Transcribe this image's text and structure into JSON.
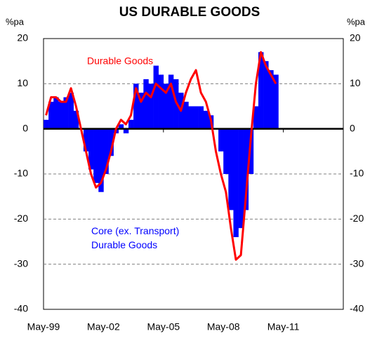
{
  "chart_data": {
    "type": "bar_line",
    "title": "US DURABLE  GOODS",
    "y_unit_label": "%pa",
    "y2_unit_label": "%pa",
    "x": [
      0,
      3,
      6,
      9,
      12,
      15,
      18,
      21,
      24,
      27,
      30,
      33,
      36,
      39,
      42,
      45,
      48,
      51,
      54,
      57,
      60,
      63,
      66,
      69,
      72,
      75,
      78,
      81,
      84,
      87,
      90,
      93,
      96,
      99,
      102,
      105,
      108,
      111,
      114,
      117,
      120,
      123,
      126,
      129,
      132,
      135,
      138
    ],
    "xlim": [
      0,
      180
    ],
    "xticks": [
      {
        "value": 0,
        "label": "May-99"
      },
      {
        "value": 36,
        "label": "May-02"
      },
      {
        "value": 72,
        "label": "May-05"
      },
      {
        "value": 108,
        "label": "May-08"
      },
      {
        "value": 144,
        "label": "May-11"
      }
    ],
    "ylim": [
      -40,
      20
    ],
    "yticks": [
      -40,
      -30,
      -20,
      -10,
      0,
      10,
      20
    ],
    "y2lim": [
      -40,
      20
    ],
    "y2ticks": [
      -40,
      -30,
      -20,
      -10,
      0,
      10,
      20
    ],
    "grid": true,
    "series": [
      {
        "name": "Core (ex. Transport) Durable Goods",
        "kind": "bar",
        "color": "#0000ff",
        "values": [
          2,
          6,
          7,
          6,
          7,
          8,
          4,
          0,
          -5,
          -9,
          -12,
          -14,
          -10,
          -6,
          -1,
          1,
          -1,
          2,
          10,
          8,
          11,
          10,
          14,
          12,
          10,
          12,
          11,
          8,
          6,
          5,
          5,
          5,
          4,
          3,
          0,
          -5,
          -10,
          -18,
          -24,
          -22,
          -18,
          -10,
          5,
          17,
          15,
          13,
          12
        ]
      },
      {
        "name": "Durable Goods",
        "kind": "line",
        "color": "#ff0000",
        "values": [
          3,
          7,
          7,
          6,
          6,
          9,
          5,
          0,
          -5,
          -10,
          -13,
          -12,
          -9,
          -5,
          0,
          2,
          1,
          3,
          9,
          6,
          8,
          7,
          10,
          9,
          8,
          10,
          6,
          4,
          8,
          11,
          13,
          8,
          6,
          2,
          -5,
          -10,
          -14,
          -22,
          -29,
          -28,
          -15,
          -2,
          10,
          17,
          14,
          12,
          10
        ]
      }
    ]
  }
}
